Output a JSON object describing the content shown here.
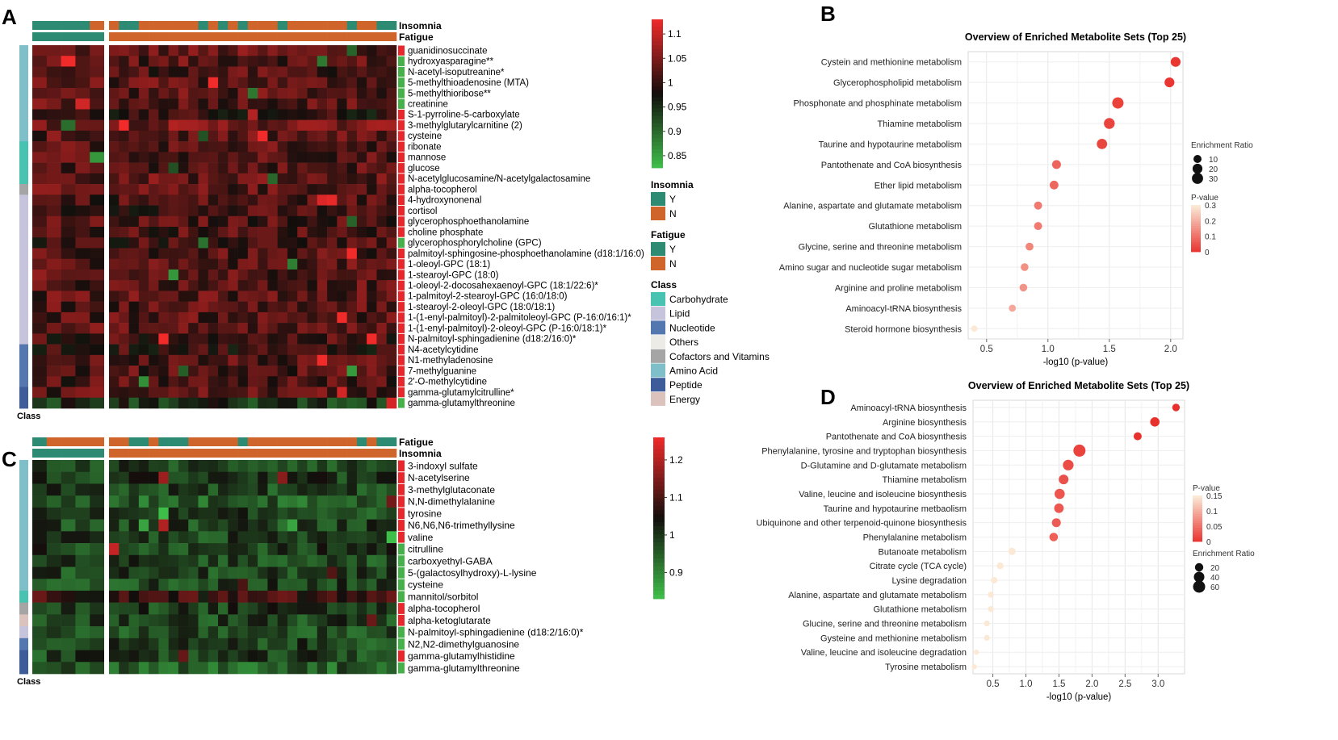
{
  "panels": {
    "a": "A",
    "b": "B",
    "c": "C",
    "d": "D"
  },
  "colors": {
    "insomnia_y": "#2e8b73",
    "insomnia_n": "#d0652c",
    "fatigue_y": "#2e8b73",
    "fatigue_n": "#d0652c",
    "row_up": "#e8262c",
    "row_down": "#46b04a",
    "heat_low": "#3fbf4a",
    "heat_mid": "#120e0c",
    "heat_high": "#f12a2a",
    "dot_low_p": "#e8302c",
    "dot_high_p": "#fbe9d6"
  },
  "classes": [
    {
      "name": "Carbohydrate",
      "color": "#48c2b1"
    },
    {
      "name": "Lipid",
      "color": "#c6c3dd"
    },
    {
      "name": "Nucleotide",
      "color": "#5577b0"
    },
    {
      "name": "Others",
      "color": "#ecebe6"
    },
    {
      "name": "Cofactors and Vitamins",
      "color": "#a5a5a5"
    },
    {
      "name": "Amino Acid",
      "color": "#7fbfc9"
    },
    {
      "name": "Peptide",
      "color": "#3f5c9a"
    },
    {
      "name": "Energy",
      "color": "#dcc2bc"
    }
  ],
  "chart_data": [
    {
      "type": "heatmap",
      "panel": "A",
      "annotation_tracks": [
        "Insomnia",
        "Fatigue"
      ],
      "column_groups": {
        "Fatigue": [
          "Y",
          "N"
        ],
        "Insomnia": [
          "Y",
          "N"
        ]
      },
      "row_label": "Class",
      "rows": [
        "guanidinosuccinate",
        "hydroxyasparagine**",
        "N-acetyl-isoputreanine*",
        "5-methylthioadenosine (MTA)",
        "5-methylthioribose**",
        "creatinine",
        "S-1-pyrroline-5-carboxylate",
        "3-methylglutarylcarnitine (2)",
        "cysteine",
        "ribonate",
        "mannose",
        "glucose",
        "N-acetylglucosamine/N-acetylgalactosamine",
        "alpha-tocopherol",
        "4-hydroxynonenal",
        "cortisol",
        "glycerophosphoethanolamine",
        "choline phosphate",
        "glycerophosphorylcholine (GPC)",
        "palmitoyl-sphingosine-phosphoethanolamine (d18:1/16:0)",
        "1-oleoyl-GPC (18:1)",
        "1-stearoyl-GPC (18:0)",
        "1-oleoyl-2-docosahexaenoyl-GPC (18:1/22:6)*",
        "1-palmitoyl-2-stearoyl-GPC (16:0/18:0)",
        "1-stearoyl-2-oleoyl-GPC (18:0/18:1)",
        "1-(1-enyl-palmitoyl)-2-palmitoleoyl-GPC (P-16:0/16:1)*",
        "1-(1-enyl-palmitoyl)-2-oleoyl-GPC (P-16:0/18:1)*",
        "N-palmitoyl-sphingadienine (d18:2/16:0)*",
        "N4-acetylcytidine",
        "N1-methyladenosine",
        "7-methylguanine",
        "2'-O-methylcytidine",
        "gamma-glutamylcitrulline*",
        "gamma-glutamylthreonine"
      ],
      "legend": {
        "ticks": [
          1.1,
          1.05,
          1,
          0.95,
          0.9,
          0.85
        ]
      }
    },
    {
      "type": "heatmap",
      "panel": "C",
      "annotation_tracks": [
        "Fatigue",
        "Insomnia"
      ],
      "row_label": "Class",
      "rows": [
        "3-indoxyl sulfate",
        "N-acetylserine",
        "3-methylglutaconate",
        "N,N-dimethylalanine",
        "tyrosine",
        "N6,N6,N6-trimethyllysine",
        "valine",
        "citrulline",
        "carboxyethyl-GABA",
        "5-(galactosylhydroxy)-L-lysine",
        "cysteine",
        "mannitol/sorbitol",
        "alpha-tocopherol",
        "alpha-ketoglutarate",
        "N-palmitoyl-sphingadienine (d18:2/16:0)*",
        "N2,N2-dimethylguanosine",
        "gamma-glutamylhistidine",
        "gamma-glutamylthreonine"
      ],
      "legend": {
        "ticks": [
          1.2,
          1.1,
          1,
          0.9
        ]
      }
    },
    {
      "type": "scatter",
      "panel": "B",
      "title": "Overview of Enriched Metabolite Sets (Top 25)",
      "xlabel": "-log10 (p-value)",
      "xlim": [
        0.35,
        2.1
      ],
      "xticks": [
        0.5,
        1.0,
        1.5,
        2.0
      ],
      "size_legend": {
        "title": "Enrichment Ratio",
        "values": [
          10,
          20,
          30
        ]
      },
      "color_legend": {
        "title": "P-value",
        "ticks": [
          0.3,
          0.2,
          0.1,
          0.0
        ]
      },
      "points": [
        {
          "name": "Cystein and methionine metabolism",
          "x": 2.04,
          "ratio": 20,
          "p": 0.009
        },
        {
          "name": "Glycerophospholipid metabolism",
          "x": 1.99,
          "ratio": 20,
          "p": 0.01
        },
        {
          "name": "Phosphonate and phosphinate metabolism",
          "x": 1.57,
          "ratio": 32,
          "p": 0.027
        },
        {
          "name": "Thiamine metabolism",
          "x": 1.5,
          "ratio": 28,
          "p": 0.032
        },
        {
          "name": "Taurine and hypotaurine metabolism",
          "x": 1.44,
          "ratio": 24,
          "p": 0.036
        },
        {
          "name": "Pantothenate and CoA biosynthesis",
          "x": 1.07,
          "ratio": 14,
          "p": 0.085
        },
        {
          "name": "Ether lipid metabolism",
          "x": 1.05,
          "ratio": 13,
          "p": 0.089
        },
        {
          "name": "Alanine, aspartate and glutamate metabolism",
          "x": 0.92,
          "ratio": 10,
          "p": 0.12
        },
        {
          "name": "Glutathione metabolism",
          "x": 0.92,
          "ratio": 10,
          "p": 0.12
        },
        {
          "name": "Glycine, serine and threonine metabolism",
          "x": 0.85,
          "ratio": 9,
          "p": 0.14
        },
        {
          "name": "Amino sugar and nucleotide sugar metabolism",
          "x": 0.81,
          "ratio": 8,
          "p": 0.155
        },
        {
          "name": "Arginine and proline metabolism",
          "x": 0.8,
          "ratio": 8,
          "p": 0.16
        },
        {
          "name": "Aminoacyl-tRNA biosynthesis",
          "x": 0.71,
          "ratio": 6,
          "p": 0.195
        },
        {
          "name": "Steroid hormone biosynthesis",
          "x": 0.4,
          "ratio": 3,
          "p": 0.4
        }
      ]
    },
    {
      "type": "scatter",
      "panel": "D",
      "title": "Overview of Enriched Metabolite Sets (Top 25)",
      "xlabel": "-log10 (p-value)",
      "xlim": [
        0.2,
        3.4
      ],
      "xticks": [
        0.5,
        1.0,
        1.5,
        2.0,
        2.5,
        3.0
      ],
      "size_legend": {
        "title": "Enrichment Ratio",
        "values": [
          20,
          40,
          60
        ]
      },
      "color_legend": {
        "title": "P-value",
        "ticks": [
          0.15,
          0.1,
          0.05,
          0.0
        ]
      },
      "points": [
        {
          "name": "Aminoacyl-tRNA biosynthesis",
          "x": 3.27,
          "ratio": 14,
          "p": 0.0005
        },
        {
          "name": "Arginine biosynthesis",
          "x": 2.95,
          "ratio": 28,
          "p": 0.001
        },
        {
          "name": "Pantothenate and CoA biosynthesis",
          "x": 2.69,
          "ratio": 18,
          "p": 0.002
        },
        {
          "name": "Phenylalanine, tyrosine and tryptophan biosynthesis",
          "x": 1.81,
          "ratio": 60,
          "p": 0.015
        },
        {
          "name": "D-Glutamine and D-glutamate metabolism",
          "x": 1.64,
          "ratio": 42,
          "p": 0.023
        },
        {
          "name": "Thiamine metabolism",
          "x": 1.57,
          "ratio": 32,
          "p": 0.027
        },
        {
          "name": "Valine, leucine and isoleucine biosynthesis",
          "x": 1.51,
          "ratio": 36,
          "p": 0.031
        },
        {
          "name": "Taurine and hypotaurine metbaolism",
          "x": 1.5,
          "ratio": 30,
          "p": 0.032
        },
        {
          "name": "Ubiquinone and other terpenoid-quinone biosynthesis",
          "x": 1.46,
          "ratio": 24,
          "p": 0.035
        },
        {
          "name": "Phenylalanine metabolism",
          "x": 1.42,
          "ratio": 22,
          "p": 0.038
        },
        {
          "name": "Butanoate metabolism",
          "x": 0.79,
          "ratio": 12,
          "p": 0.16
        },
        {
          "name": "Citrate cycle (TCA cycle)",
          "x": 0.61,
          "ratio": 10,
          "p": 0.25
        },
        {
          "name": "Lysine degradation",
          "x": 0.52,
          "ratio": 8,
          "p": 0.3
        },
        {
          "name": "Alanine, aspartate and glutamate metabolism",
          "x": 0.47,
          "ratio": 6,
          "p": 0.34
        },
        {
          "name": "Glutathione metabolism",
          "x": 0.47,
          "ratio": 6,
          "p": 0.34
        },
        {
          "name": "Glucine, serine and threonine metabolism",
          "x": 0.41,
          "ratio": 5,
          "p": 0.39
        },
        {
          "name": "Gysteine and methionine metabolism",
          "x": 0.41,
          "ratio": 5,
          "p": 0.39
        },
        {
          "name": "Valine, leucine and isoleucine degradation",
          "x": 0.25,
          "ratio": 3,
          "p": 0.56
        },
        {
          "name": "Tyrosine metabolism",
          "x": 0.22,
          "ratio": 3,
          "p": 0.6
        }
      ]
    }
  ]
}
